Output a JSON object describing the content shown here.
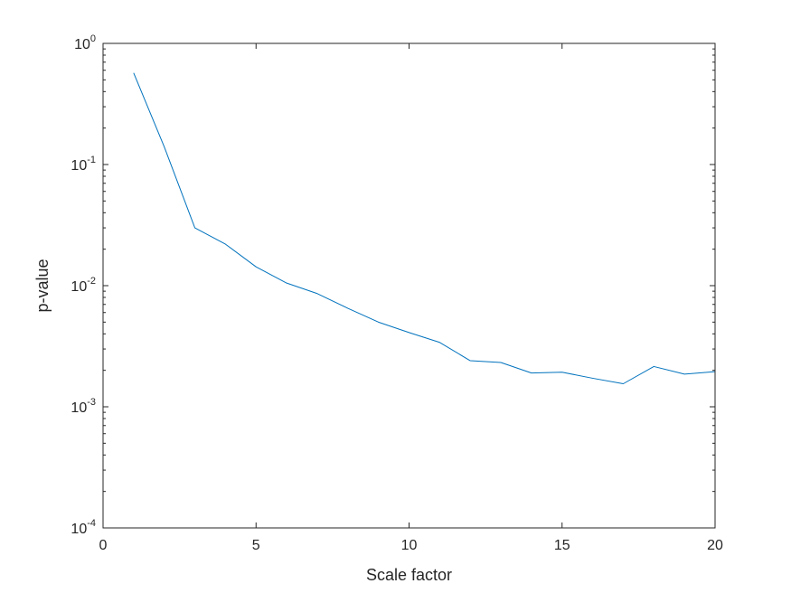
{
  "chart_data": {
    "type": "line",
    "title": "",
    "xlabel": "Scale factor",
    "ylabel": "p-value",
    "xlim": [
      0,
      20
    ],
    "ylim": [
      0.0001,
      1
    ],
    "yscale": "log",
    "grid": false,
    "box": true,
    "x_ticks": [
      0,
      5,
      10,
      15,
      20
    ],
    "y_ticks": [
      {
        "value": 0.0001,
        "base": "10",
        "exp": "-4"
      },
      {
        "value": 0.001,
        "base": "10",
        "exp": "-3"
      },
      {
        "value": 0.01,
        "base": "10",
        "exp": "-2"
      },
      {
        "value": 0.1,
        "base": "10",
        "exp": "-1"
      },
      {
        "value": 1,
        "base": "10",
        "exp": "0"
      }
    ],
    "series": [
      {
        "color": "#0072bd",
        "x": [
          1,
          2,
          3,
          4,
          5,
          6,
          7,
          8,
          9,
          10,
          11,
          12,
          13,
          14,
          15,
          16,
          17,
          18,
          19,
          20
        ],
        "y": [
          0.57,
          0.14,
          0.03,
          0.022,
          0.0143,
          0.0105,
          0.0086,
          0.0065,
          0.005,
          0.0041,
          0.0034,
          0.0024,
          0.00232,
          0.0019,
          0.00193,
          0.00172,
          0.00155,
          0.00215,
          0.00186,
          0.00195
        ]
      }
    ]
  }
}
